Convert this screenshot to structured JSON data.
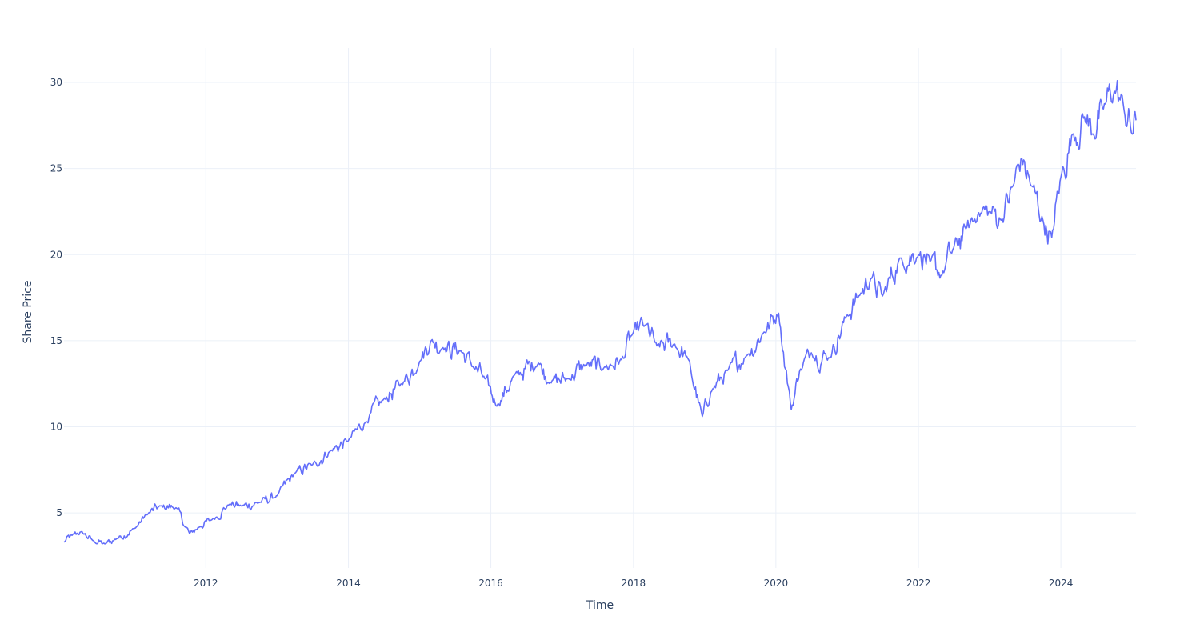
{
  "chart_data": {
    "type": "line",
    "title": "",
    "xlabel": "Time",
    "ylabel": "Share Price",
    "x_type": "date",
    "xlim": [
      "2010-01-04",
      "2025-01-20"
    ],
    "ylim": [
      1.8,
      32
    ],
    "x_ticks": [
      "2012",
      "2014",
      "2016",
      "2018",
      "2020",
      "2022",
      "2024"
    ],
    "y_ticks": [
      5,
      10,
      15,
      20,
      25,
      30
    ],
    "grid": true,
    "legend": "none",
    "series": [
      {
        "color": "#636efa",
        "x": [
          "2010-01-04",
          "2010-02-15",
          "2010-04-01",
          "2010-06-01",
          "2010-08-01",
          "2010-10-01",
          "2011-01-01",
          "2011-03-01",
          "2011-05-15",
          "2011-08-01",
          "2011-09-15",
          "2011-10-10",
          "2011-12-01",
          "2012-02-01",
          "2012-05-01",
          "2012-07-01",
          "2012-10-01",
          "2013-01-01",
          "2013-04-01",
          "2013-07-01",
          "2013-10-01",
          "2014-01-01",
          "2014-04-01",
          "2014-07-01",
          "2014-10-01",
          "2015-01-01",
          "2015-03-01",
          "2015-05-01",
          "2015-08-01",
          "2015-10-01",
          "2015-12-01",
          "2016-02-01",
          "2016-05-01",
          "2016-09-01",
          "2016-11-01",
          "2017-02-01",
          "2017-05-01",
          "2017-08-01",
          "2017-11-01",
          "2018-01-01",
          "2018-03-01",
          "2018-05-01",
          "2018-08-01",
          "2018-10-01",
          "2018-12-20",
          "2019-02-01",
          "2019-05-01",
          "2019-08-01",
          "2019-11-01",
          "2020-01-15",
          "2020-03-20",
          "2020-05-01",
          "2020-07-01",
          "2020-10-01",
          "2021-01-01",
          "2021-03-01",
          "2021-05-01",
          "2021-07-01",
          "2021-10-01",
          "2022-01-01",
          "2022-03-01",
          "2022-05-01",
          "2022-07-01",
          "2022-09-01",
          "2022-11-01",
          "2023-01-01",
          "2023-03-01",
          "2023-05-01",
          "2023-06-15",
          "2023-08-01",
          "2023-10-01",
          "2023-11-15",
          "2024-01-01",
          "2024-03-01",
          "2024-05-01",
          "2024-06-15",
          "2024-08-01",
          "2024-10-01",
          "2024-11-15",
          "2025-01-01",
          "2025-01-20"
        ],
        "y": [
          3.3,
          3.7,
          3.9,
          3.4,
          3.2,
          3.5,
          4.1,
          4.9,
          5.4,
          5.3,
          4.2,
          3.8,
          4.2,
          4.6,
          5.5,
          5.4,
          5.6,
          6.0,
          7.3,
          7.8,
          8.6,
          9.2,
          10.3,
          11.6,
          12.5,
          13.8,
          15.0,
          14.6,
          14.4,
          13.5,
          12.8,
          11.2,
          13.0,
          13.7,
          12.6,
          12.8,
          13.6,
          13.4,
          13.9,
          15.5,
          15.9,
          14.7,
          14.8,
          14.1,
          10.6,
          12.0,
          13.3,
          14.1,
          15.5,
          16.6,
          11.0,
          13.2,
          14.3,
          14.0,
          16.5,
          17.6,
          18.6,
          17.6,
          19.8,
          20.0,
          19.6,
          18.8,
          20.4,
          21.5,
          22.3,
          22.5,
          22.0,
          24.0,
          25.6,
          24.0,
          22.0,
          21.0,
          24.5,
          27.0,
          28.0,
          27.0,
          28.5,
          29.5,
          28.8,
          27.0,
          27.8
        ]
      }
    ]
  }
}
